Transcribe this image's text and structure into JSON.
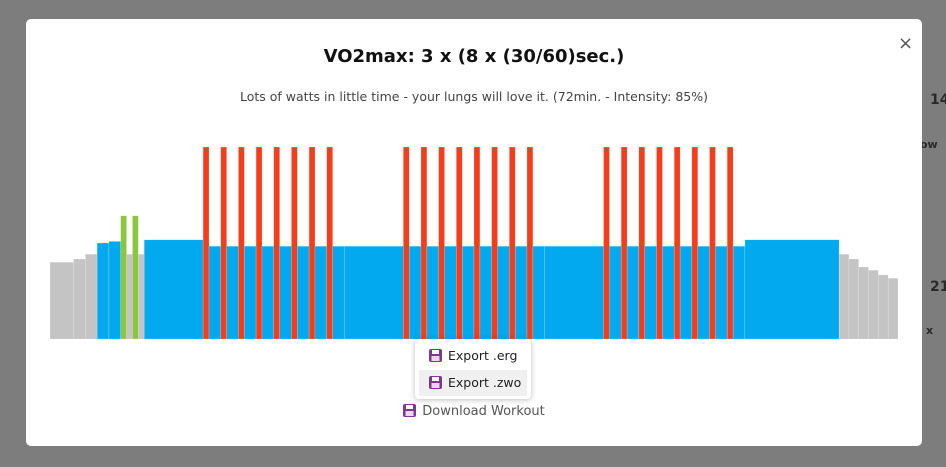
{
  "background": {
    "labels": [
      "14",
      "ow",
      "21",
      "x"
    ]
  },
  "modal": {
    "title": "VO2max: 3 x (8 x (30/60)sec.)",
    "description": "Lots of watts in little time - your lungs will love it. (72min. - Intensity: 85%)",
    "close": "×",
    "menu": [
      "Export .erg",
      "Export .zwo"
    ],
    "download": "Download Workout"
  },
  "workout": {
    "segments": [
      {
        "d": 120,
        "p": 48,
        "c": "#c4c4c4"
      },
      {
        "d": 60,
        "p": 50,
        "c": "#c4c4c4"
      },
      {
        "d": 60,
        "p": 53,
        "c": "#c4c4c4"
      },
      {
        "d": 60,
        "p": 60,
        "c": "#02a9ee"
      },
      {
        "d": 60,
        "p": 61,
        "c": "#02a9ee"
      },
      {
        "d": 30,
        "p": 77,
        "c": "#8cc63f"
      },
      {
        "d": 30,
        "p": 53,
        "c": "#c4c4c4"
      },
      {
        "d": 30,
        "p": 77,
        "c": "#8cc63f"
      },
      {
        "d": 30,
        "p": 53,
        "c": "#c4c4c4"
      },
      {
        "d": 300,
        "p": 62,
        "c": "#02a9ee"
      },
      {
        "d": 30,
        "p": 120,
        "c": "#f43d1c"
      },
      {
        "d": 60,
        "p": 58,
        "c": "#02a9ee"
      },
      {
        "d": 30,
        "p": 120,
        "c": "#f43d1c"
      },
      {
        "d": 60,
        "p": 58,
        "c": "#02a9ee"
      },
      {
        "d": 30,
        "p": 120,
        "c": "#f43d1c"
      },
      {
        "d": 60,
        "p": 58,
        "c": "#02a9ee"
      },
      {
        "d": 30,
        "p": 120,
        "c": "#f43d1c"
      },
      {
        "d": 60,
        "p": 58,
        "c": "#02a9ee"
      },
      {
        "d": 30,
        "p": 120,
        "c": "#f43d1c"
      },
      {
        "d": 60,
        "p": 58,
        "c": "#02a9ee"
      },
      {
        "d": 30,
        "p": 120,
        "c": "#f43d1c"
      },
      {
        "d": 60,
        "p": 58,
        "c": "#02a9ee"
      },
      {
        "d": 30,
        "p": 120,
        "c": "#f43d1c"
      },
      {
        "d": 60,
        "p": 58,
        "c": "#02a9ee"
      },
      {
        "d": 30,
        "p": 120,
        "c": "#f43d1c"
      },
      {
        "d": 60,
        "p": 58,
        "c": "#02a9ee"
      },
      {
        "d": 300,
        "p": 58,
        "c": "#02a9ee"
      },
      {
        "d": 30,
        "p": 120,
        "c": "#f43d1c"
      },
      {
        "d": 60,
        "p": 58,
        "c": "#02a9ee"
      },
      {
        "d": 30,
        "p": 120,
        "c": "#f43d1c"
      },
      {
        "d": 60,
        "p": 58,
        "c": "#02a9ee"
      },
      {
        "d": 30,
        "p": 120,
        "c": "#f43d1c"
      },
      {
        "d": 60,
        "p": 58,
        "c": "#02a9ee"
      },
      {
        "d": 30,
        "p": 120,
        "c": "#f43d1c"
      },
      {
        "d": 60,
        "p": 58,
        "c": "#02a9ee"
      },
      {
        "d": 30,
        "p": 120,
        "c": "#f43d1c"
      },
      {
        "d": 60,
        "p": 58,
        "c": "#02a9ee"
      },
      {
        "d": 30,
        "p": 120,
        "c": "#f43d1c"
      },
      {
        "d": 60,
        "p": 58,
        "c": "#02a9ee"
      },
      {
        "d": 30,
        "p": 120,
        "c": "#f43d1c"
      },
      {
        "d": 60,
        "p": 58,
        "c": "#02a9ee"
      },
      {
        "d": 30,
        "p": 120,
        "c": "#f43d1c"
      },
      {
        "d": 60,
        "p": 58,
        "c": "#02a9ee"
      },
      {
        "d": 300,
        "p": 58,
        "c": "#02a9ee"
      },
      {
        "d": 30,
        "p": 120,
        "c": "#f43d1c"
      },
      {
        "d": 60,
        "p": 58,
        "c": "#02a9ee"
      },
      {
        "d": 30,
        "p": 120,
        "c": "#f43d1c"
      },
      {
        "d": 60,
        "p": 58,
        "c": "#02a9ee"
      },
      {
        "d": 30,
        "p": 120,
        "c": "#f43d1c"
      },
      {
        "d": 60,
        "p": 58,
        "c": "#02a9ee"
      },
      {
        "d": 30,
        "p": 120,
        "c": "#f43d1c"
      },
      {
        "d": 60,
        "p": 58,
        "c": "#02a9ee"
      },
      {
        "d": 30,
        "p": 120,
        "c": "#f43d1c"
      },
      {
        "d": 60,
        "p": 58,
        "c": "#02a9ee"
      },
      {
        "d": 30,
        "p": 120,
        "c": "#f43d1c"
      },
      {
        "d": 60,
        "p": 58,
        "c": "#02a9ee"
      },
      {
        "d": 30,
        "p": 120,
        "c": "#f43d1c"
      },
      {
        "d": 60,
        "p": 58,
        "c": "#02a9ee"
      },
      {
        "d": 30,
        "p": 120,
        "c": "#f43d1c"
      },
      {
        "d": 60,
        "p": 58,
        "c": "#02a9ee"
      },
      {
        "d": 480,
        "p": 62,
        "c": "#02a9ee"
      },
      {
        "d": 50,
        "p": 53,
        "c": "#c4c4c4"
      },
      {
        "d": 50,
        "p": 50,
        "c": "#c4c4c4"
      },
      {
        "d": 50,
        "p": 45,
        "c": "#c4c4c4"
      },
      {
        "d": 50,
        "p": 43,
        "c": "#c4c4c4"
      },
      {
        "d": 50,
        "p": 40,
        "c": "#c4c4c4"
      },
      {
        "d": 50,
        "p": 38,
        "c": "#c4c4c4"
      }
    ]
  }
}
